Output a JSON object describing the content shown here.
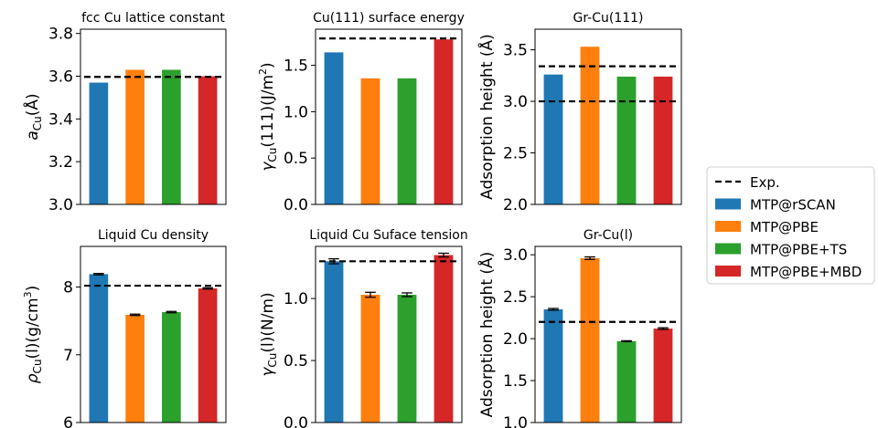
{
  "legend": {
    "position": "right",
    "items": [
      {
        "label": "Exp.",
        "kind": "dashed",
        "color": "#000000"
      },
      {
        "label": "MTP@rSCAN",
        "kind": "patch",
        "color": "#1f77b4"
      },
      {
        "label": "MTP@PBE",
        "kind": "patch",
        "color": "#ff7f0e"
      },
      {
        "label": "MTP@PBE+TS",
        "kind": "patch",
        "color": "#2ca02c"
      },
      {
        "label": "MTP@PBE+MBD",
        "kind": "patch",
        "color": "#d62728"
      }
    ]
  },
  "chart_data": [
    {
      "type": "bar",
      "title": "fcc Cu lattice constant",
      "ylabel": "a_Cu(Å)",
      "categories": [
        "MTP@rSCAN",
        "MTP@PBE",
        "MTP@PBE+TS",
        "MTP@PBE+MBD"
      ],
      "values": [
        3.57,
        3.63,
        3.63,
        3.6
      ],
      "colors": [
        "#1f77b4",
        "#ff7f0e",
        "#2ca02c",
        "#d62728"
      ],
      "exp": [
        3.597
      ],
      "ylim": [
        3.0,
        3.82
      ],
      "yticks": [
        3.0,
        3.2,
        3.4,
        3.6,
        3.8
      ],
      "yticklabels": [
        "3.0",
        "3.2",
        "3.4",
        "3.6",
        "3.8"
      ],
      "grid": false
    },
    {
      "type": "bar",
      "title": "Cu(111) surface energy",
      "ylabel": "γ_Cu(111)(J/m²)",
      "categories": [
        "MTP@rSCAN",
        "MTP@PBE",
        "MTP@PBE+TS",
        "MTP@PBE+MBD"
      ],
      "values": [
        1.64,
        1.36,
        1.36,
        1.78
      ],
      "colors": [
        "#1f77b4",
        "#ff7f0e",
        "#2ca02c",
        "#d62728"
      ],
      "exp": [
        1.79
      ],
      "ylim": [
        0.0,
        1.89
      ],
      "yticks": [
        0.0,
        0.5,
        1.0,
        1.5
      ],
      "yticklabels": [
        "0.0",
        "0.5",
        "1.0",
        "1.5"
      ],
      "grid": false
    },
    {
      "type": "bar",
      "title": "Gr-Cu(111)",
      "ylabel": "Adsorption height (Å)",
      "categories": [
        "MTP@rSCAN",
        "MTP@PBE",
        "MTP@PBE+TS",
        "MTP@PBE+MBD"
      ],
      "values": [
        3.26,
        3.53,
        3.24,
        3.24
      ],
      "colors": [
        "#1f77b4",
        "#ff7f0e",
        "#2ca02c",
        "#d62728"
      ],
      "exp": [
        3.0,
        3.34
      ],
      "ylim": [
        2.0,
        3.7
      ],
      "yticks": [
        2.0,
        2.5,
        3.0,
        3.5
      ],
      "yticklabels": [
        "2.0",
        "2.5",
        "3.0",
        "3.5"
      ],
      "grid": false
    },
    {
      "type": "bar",
      "title": "Liquid Cu density",
      "ylabel": "ρ_Cu(l)(g/cm³)",
      "categories": [
        "MTP@rSCAN",
        "MTP@PBE",
        "MTP@PBE+TS",
        "MTP@PBE+MBD"
      ],
      "values": [
        8.19,
        7.59,
        7.63,
        7.98
      ],
      "errors": [
        0.01,
        0.01,
        0.01,
        0.01
      ],
      "colors": [
        "#1f77b4",
        "#ff7f0e",
        "#2ca02c",
        "#d62728"
      ],
      "exp": [
        8.02
      ],
      "ylim": [
        6.0,
        8.6
      ],
      "yticks": [
        6,
        7,
        8
      ],
      "yticklabels": [
        "6",
        "7",
        "8"
      ],
      "grid": false
    },
    {
      "type": "bar",
      "title": "Liquid Cu Suface tension",
      "ylabel": "γ_Cu(l)(N/m)",
      "categories": [
        "MTP@rSCAN",
        "MTP@PBE",
        "MTP@PBE+TS",
        "MTP@PBE+MBD"
      ],
      "values": [
        1.3,
        1.03,
        1.03,
        1.35
      ],
      "errors": [
        0.02,
        0.02,
        0.015,
        0.015
      ],
      "colors": [
        "#1f77b4",
        "#ff7f0e",
        "#2ca02c",
        "#d62728"
      ],
      "exp": [
        1.3
      ],
      "ylim": [
        0.0,
        1.42
      ],
      "yticks": [
        0.0,
        0.5,
        1.0
      ],
      "yticklabels": [
        "0.0",
        "0.5",
        "1.0"
      ],
      "grid": false
    },
    {
      "type": "bar",
      "title": "Gr-Cu(l)",
      "ylabel": "Adsorption height (Å)",
      "categories": [
        "MTP@rSCAN",
        "MTP@PBE",
        "MTP@PBE+TS",
        "MTP@PBE+MBD"
      ],
      "values": [
        2.35,
        2.96,
        1.97,
        2.12
      ],
      "errors": [
        0.01,
        0.015,
        0.005,
        0.01
      ],
      "colors": [
        "#1f77b4",
        "#ff7f0e",
        "#2ca02c",
        "#d62728"
      ],
      "exp": [
        2.2
      ],
      "ylim": [
        1.0,
        3.1
      ],
      "yticks": [
        1.0,
        1.5,
        2.0,
        2.5,
        3.0
      ],
      "yticklabels": [
        "1.0",
        "1.5",
        "2.0",
        "2.5",
        "3.0"
      ],
      "grid": false
    }
  ]
}
